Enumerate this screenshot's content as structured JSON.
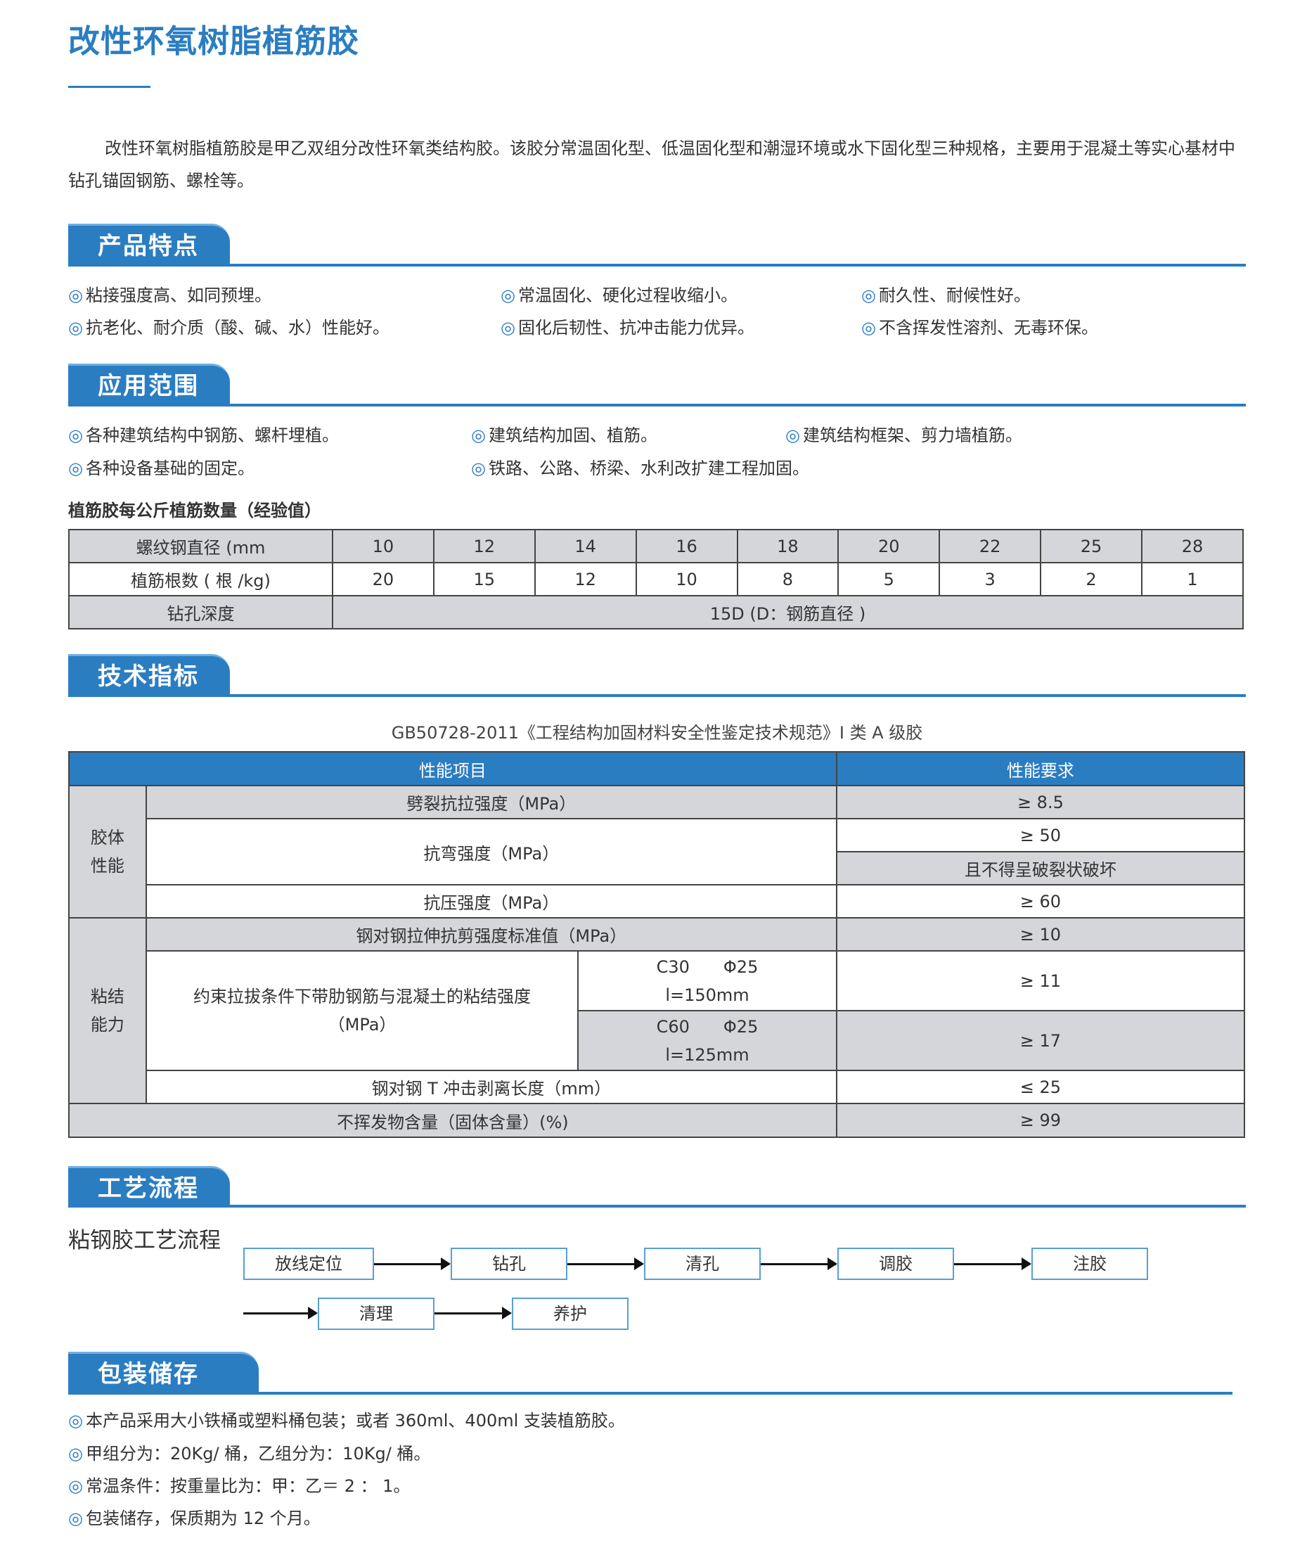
{
  "title": "改性环氧树脂植筋胶",
  "intro": "改性环氧树脂植筋胶是甲乙双组分改性环氧类结构胶。该胶分常温固化型、低温固化型和潮湿环境或水下固化型三种规格，主要用于混凝土等实心基材中钻孔锚固钢筋、螺栓等。",
  "bullet_icon": "◎",
  "accent_color": "#2b7dc1",
  "features": {
    "heading": "产品特点",
    "items": [
      "粘接强度高、如同预埋。",
      "常温固化、硬化过程收缩小。",
      "耐久性、耐候性好。",
      "抗老化、耐介质（酸、碱、水）性能好。",
      "固化后韧性、抗冲击能力优异。",
      "不含挥发性溶剂、无毒环保。"
    ]
  },
  "applications": {
    "heading": "应用范围",
    "items": [
      "各种建筑结构中钢筋、螺杆埋植。",
      "建筑结构加固、植筋。",
      "建筑结构框架、剪力墙植筋。",
      "各种设备基础的固定。",
      "铁路、公路、桥梁、水利改扩建工程加固。"
    ]
  },
  "rebar_table": {
    "caption": "植筋胶每公斤植筋数量（经验值）",
    "row_labels": [
      "螺纹钢直径 (mm",
      "植筋根数 ( 根 /kg)",
      "钻孔深度"
    ],
    "diameters": [
      "10",
      "12",
      "14",
      "16",
      "18",
      "20",
      "22",
      "25",
      "28"
    ],
    "counts": [
      "20",
      "15",
      "12",
      "10",
      "8",
      "5",
      "3",
      "2",
      "1"
    ],
    "depth": "15D (D：钢筋直径 )"
  },
  "tech": {
    "heading": "技术指标",
    "standard": "GB50728-2011《工程结构加固材料安全性鉴定技术规范》I 类 A 级胶",
    "headers": [
      "性能项目",
      "性能要求"
    ],
    "group1": "胶体\n性能",
    "group2": "粘结\n能力",
    "rows": {
      "split": "劈裂抗拉强度（MPa）",
      "split_v": "≥ 8.5",
      "bend": "抗弯强度（MPa）",
      "bend_v1": "≥ 50",
      "bend_v2": "且不得呈破裂状破坏",
      "comp": "抗压强度（MPa）",
      "comp_v": "≥ 60",
      "shear": "钢对钢拉伸抗剪强度标准值（MPa）",
      "shear_v": "≥ 10",
      "bond": "约束拉拔条件下带肋钢筋与混凝土的粘结强度（MPa）",
      "c30a": "C30　　Φ25",
      "c30b": "l=150mm",
      "c30_v": "≥ 11",
      "c60a": "C60　　Φ25",
      "c60b": "l=125mm",
      "c60_v": "≥ 17",
      "peel": "钢对钢 T 冲击剥离长度（mm）",
      "peel_v": "≤ 25",
      "solid": "不挥发物含量（固体含量）(%)",
      "solid_v": "≥ 99"
    }
  },
  "process": {
    "heading": "工艺流程",
    "subtitle": "粘钢胶工艺流程",
    "steps": [
      "放线定位",
      "钻孔",
      "清孔",
      "调胶",
      "注胶",
      "清理",
      "养护"
    ]
  },
  "packaging": {
    "heading": "包装储存",
    "items": [
      "本产品采用大小铁桶或塑料桶包装；或者 360ml、400ml 支装植筋胶。",
      "甲组分为：20Kg/ 桶，乙组分为：10Kg/ 桶。",
      "常温条件：按重量比为：甲：乙＝ 2 ： 1。",
      "包装储存，保质期为 12 个月。"
    ]
  }
}
